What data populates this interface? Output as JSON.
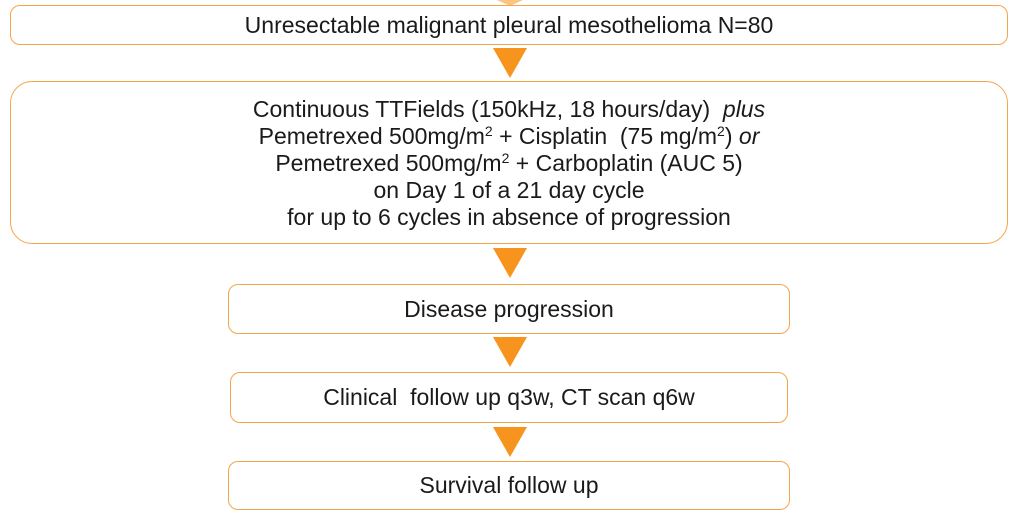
{
  "flowchart": {
    "steps": {
      "population": {
        "line1": "Unresectable malignant pleural mesothelioma N=80"
      },
      "treatment": {
        "line1_text": "Continuous TTFields (150kHz, 18 hours/day)  ",
        "line1_plus": "plus",
        "line2_pre": "Pemetrexed 500mg/m",
        "line2_sup1": "2",
        "line2_mid": " + Cisplatin  (75 mg/m",
        "line2_sup2": "2",
        "line2_post": ") ",
        "line2_or": "or",
        "line3_pre": "Pemetrexed 500mg/m",
        "line3_sup": "2",
        "line3_post": " + Carboplatin (AUC 5)",
        "line4": "on Day 1 of a 21 day cycle",
        "line5": "for up to 6 cycles in absence of progression"
      },
      "progression": {
        "line1": "Disease progression"
      },
      "followup": {
        "line1": "Clinical  follow up q3w, CT scan q6w"
      },
      "survival": {
        "line1": "Survival follow up"
      }
    },
    "colors": {
      "box_border": "#f5a54a",
      "arrow_fill": "#f7941d",
      "text": "#1a1a1a",
      "background": "#ffffff"
    }
  }
}
